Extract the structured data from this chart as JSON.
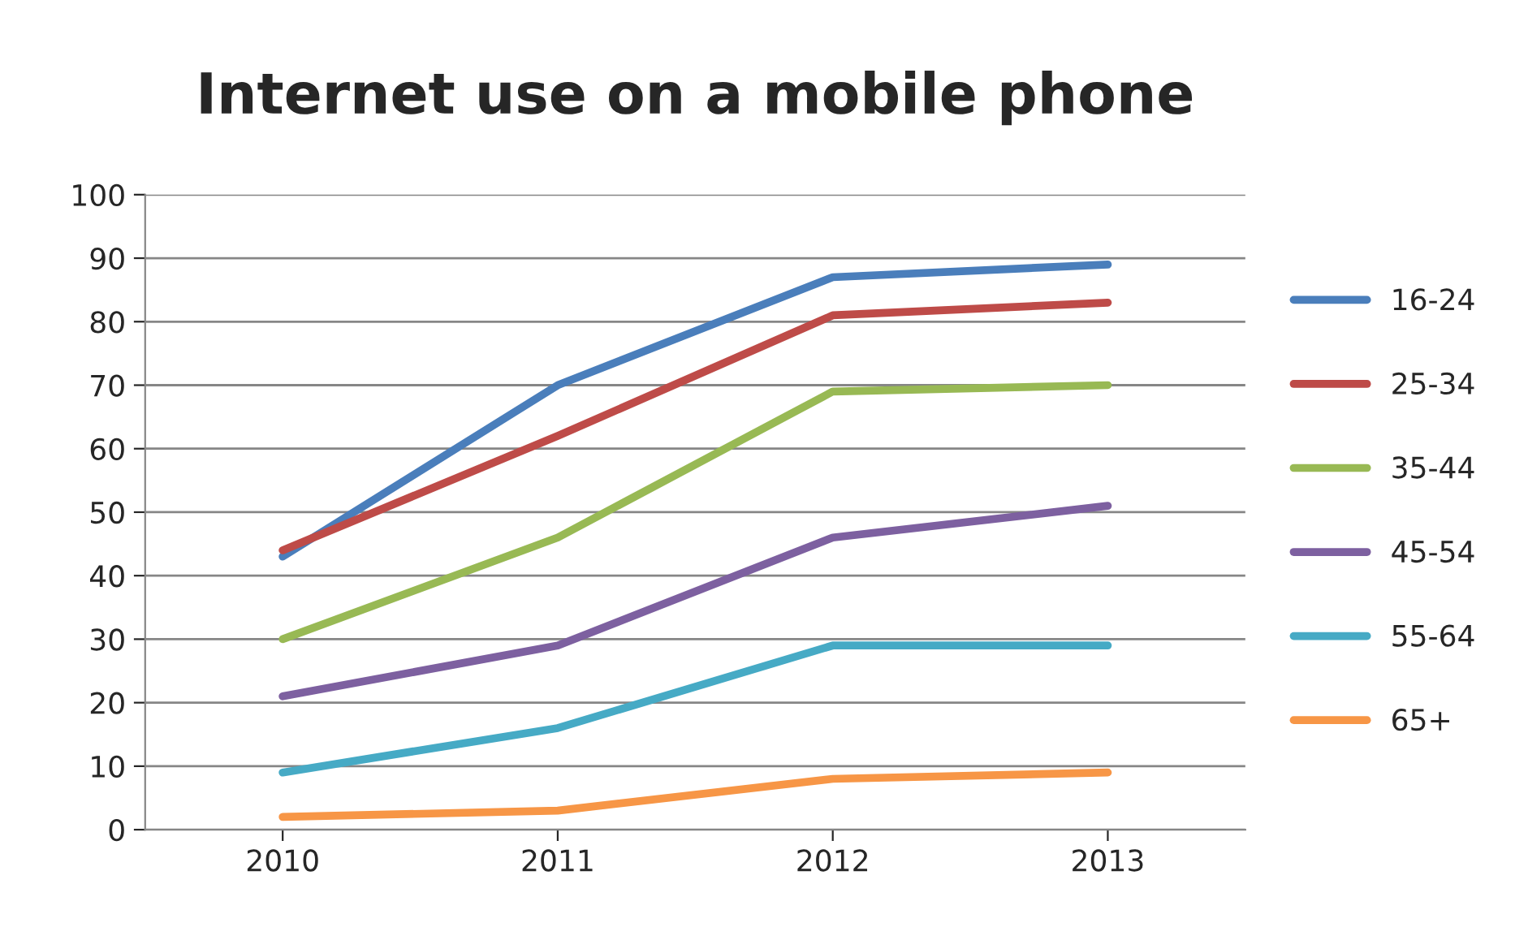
{
  "chart_data": {
    "type": "line",
    "title": "Internet use on a mobile phone",
    "categories": [
      "2010",
      "2011",
      "2012",
      "2013"
    ],
    "series": [
      {
        "name": "16-24",
        "color": "#4a7ebb",
        "values": [
          43,
          70,
          87,
          89
        ]
      },
      {
        "name": "25-34",
        "color": "#be4b48",
        "values": [
          44,
          62,
          81,
          83
        ]
      },
      {
        "name": "35-44",
        "color": "#98b954",
        "values": [
          30,
          46,
          69,
          70
        ]
      },
      {
        "name": "45-54",
        "color": "#7d60a0",
        "values": [
          21,
          29,
          46,
          51
        ]
      },
      {
        "name": "55-64",
        "color": "#46aac5",
        "values": [
          9,
          16,
          29,
          29
        ]
      },
      {
        "name": "65+",
        "color": "#f79646",
        "values": [
          2,
          3,
          8,
          9
        ]
      }
    ],
    "ylim": [
      0,
      100
    ],
    "yticks": [
      0,
      10,
      20,
      30,
      40,
      50,
      60,
      70,
      80,
      90,
      100
    ],
    "grid": "y",
    "legend": "right",
    "marker": "none",
    "line_style": "solid"
  }
}
